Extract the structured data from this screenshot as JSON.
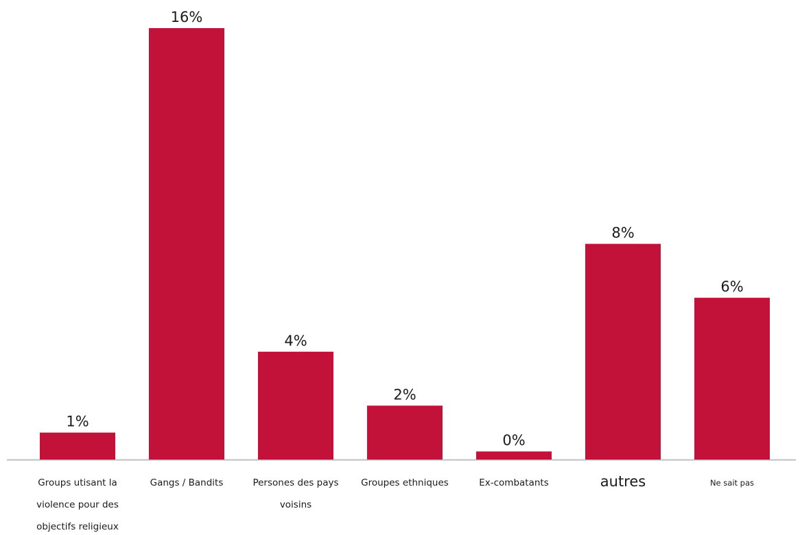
{
  "chart_data": {
    "type": "bar",
    "title": "",
    "xlabel": "",
    "ylabel": "",
    "categories": [
      "Groups utisant la violence pour des objectifs religieux",
      "Gangs / Bandits",
      "Persones des pays voisins",
      "Groupes ethniques",
      "Ex-combatants",
      "autres",
      "Ne sait pas"
    ],
    "category_lines": [
      [
        "Groups utisant la",
        "violence pour des",
        "objectifs religieux"
      ],
      [
        "Gangs / Bandits"
      ],
      [
        "Persones des pays",
        "voisins"
      ],
      [
        "Groupes ethniques"
      ],
      [
        "Ex-combatants"
      ],
      [
        "autres"
      ],
      [
        "Ne sait pas"
      ]
    ],
    "values": [
      1,
      16,
      4,
      2,
      0.3,
      8,
      6
    ],
    "value_labels": [
      "1%",
      "16%",
      "4%",
      "2%",
      "0%",
      "8%",
      "6%"
    ],
    "ylim": [
      0,
      16
    ],
    "grid": false,
    "legend": "none",
    "bar_color": "#c3123a",
    "axis_color": "#bfbfbf"
  }
}
